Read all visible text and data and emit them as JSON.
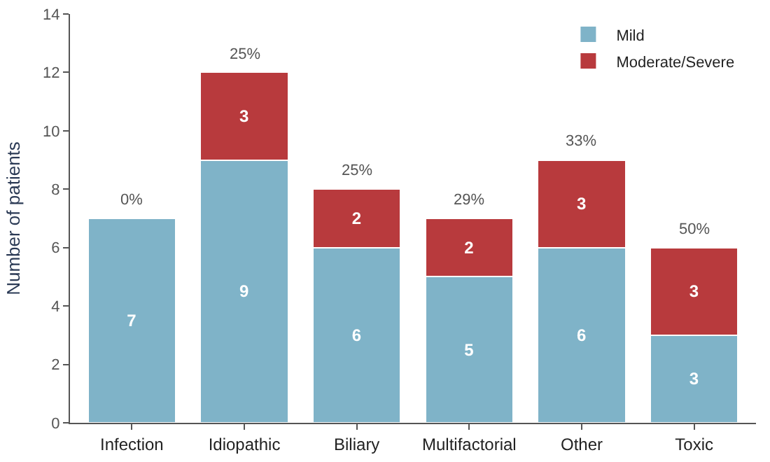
{
  "chart_data": {
    "type": "bar",
    "stacked": true,
    "ylabel": "Number of patients",
    "categories": [
      "Infection",
      "Idiopathic",
      "Biliary",
      "Multifactorial",
      "Other",
      "Toxic"
    ],
    "series": [
      {
        "name": "Mild",
        "color": "#7fb3c8",
        "values": [
          7,
          9,
          6,
          5,
          6,
          3
        ],
        "value_labels": [
          "7",
          "9",
          "6",
          "5",
          "6",
          "3"
        ]
      },
      {
        "name": "Moderate/Severe",
        "color": "#b83a3d",
        "values": [
          null,
          3,
          2,
          2,
          3,
          3
        ],
        "value_labels": [
          null,
          "3",
          "2",
          "2",
          "3",
          "3"
        ]
      }
    ],
    "annotations": [
      "0%",
      "25%",
      "25%",
      "29%",
      "33%",
      "50%"
    ],
    "ylim": [
      0,
      14
    ],
    "yticks": [
      0,
      2,
      4,
      6,
      8,
      10,
      12,
      14
    ],
    "grid": false,
    "legend": "top right"
  }
}
